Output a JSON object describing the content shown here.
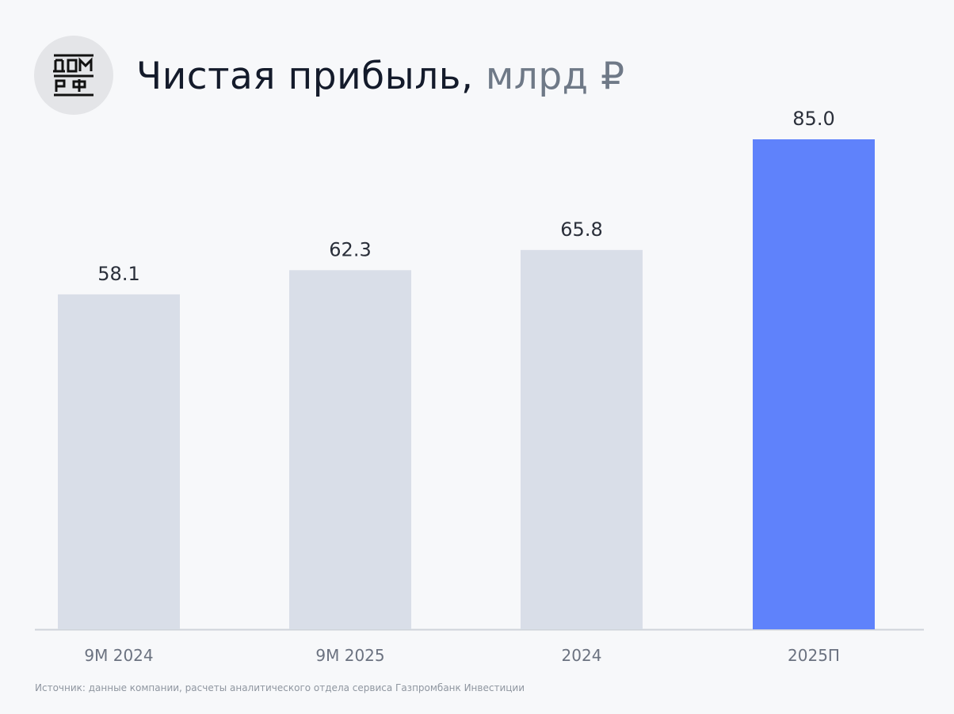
{
  "header": {
    "logo_text": "ДОМ РФ",
    "title_main": "Чистая прибыль,",
    "title_unit": "млрд ₽"
  },
  "chart_data": {
    "type": "bar",
    "title": "Чистая прибыль, млрд ₽",
    "categories": [
      "9М 2024",
      "9М 2025",
      "2024",
      "2025П"
    ],
    "values": [
      58.1,
      62.3,
      65.8,
      85.0
    ],
    "value_labels": [
      "58.1",
      "62.3",
      "65.8",
      "85.0"
    ],
    "ylim": [
      0,
      85
    ],
    "grid": false,
    "colors": {
      "default": "#d9dee8",
      "highlight": "#5f82fb",
      "label": "#2a2f3a",
      "tick": "#6b7280",
      "axis": "#cfd3d9"
    },
    "highlight_index": 3
  },
  "footer": {
    "source": "Источник: данные компании, расчеты аналитического отдела сервиса Газпромбанк Инвестиции"
  }
}
